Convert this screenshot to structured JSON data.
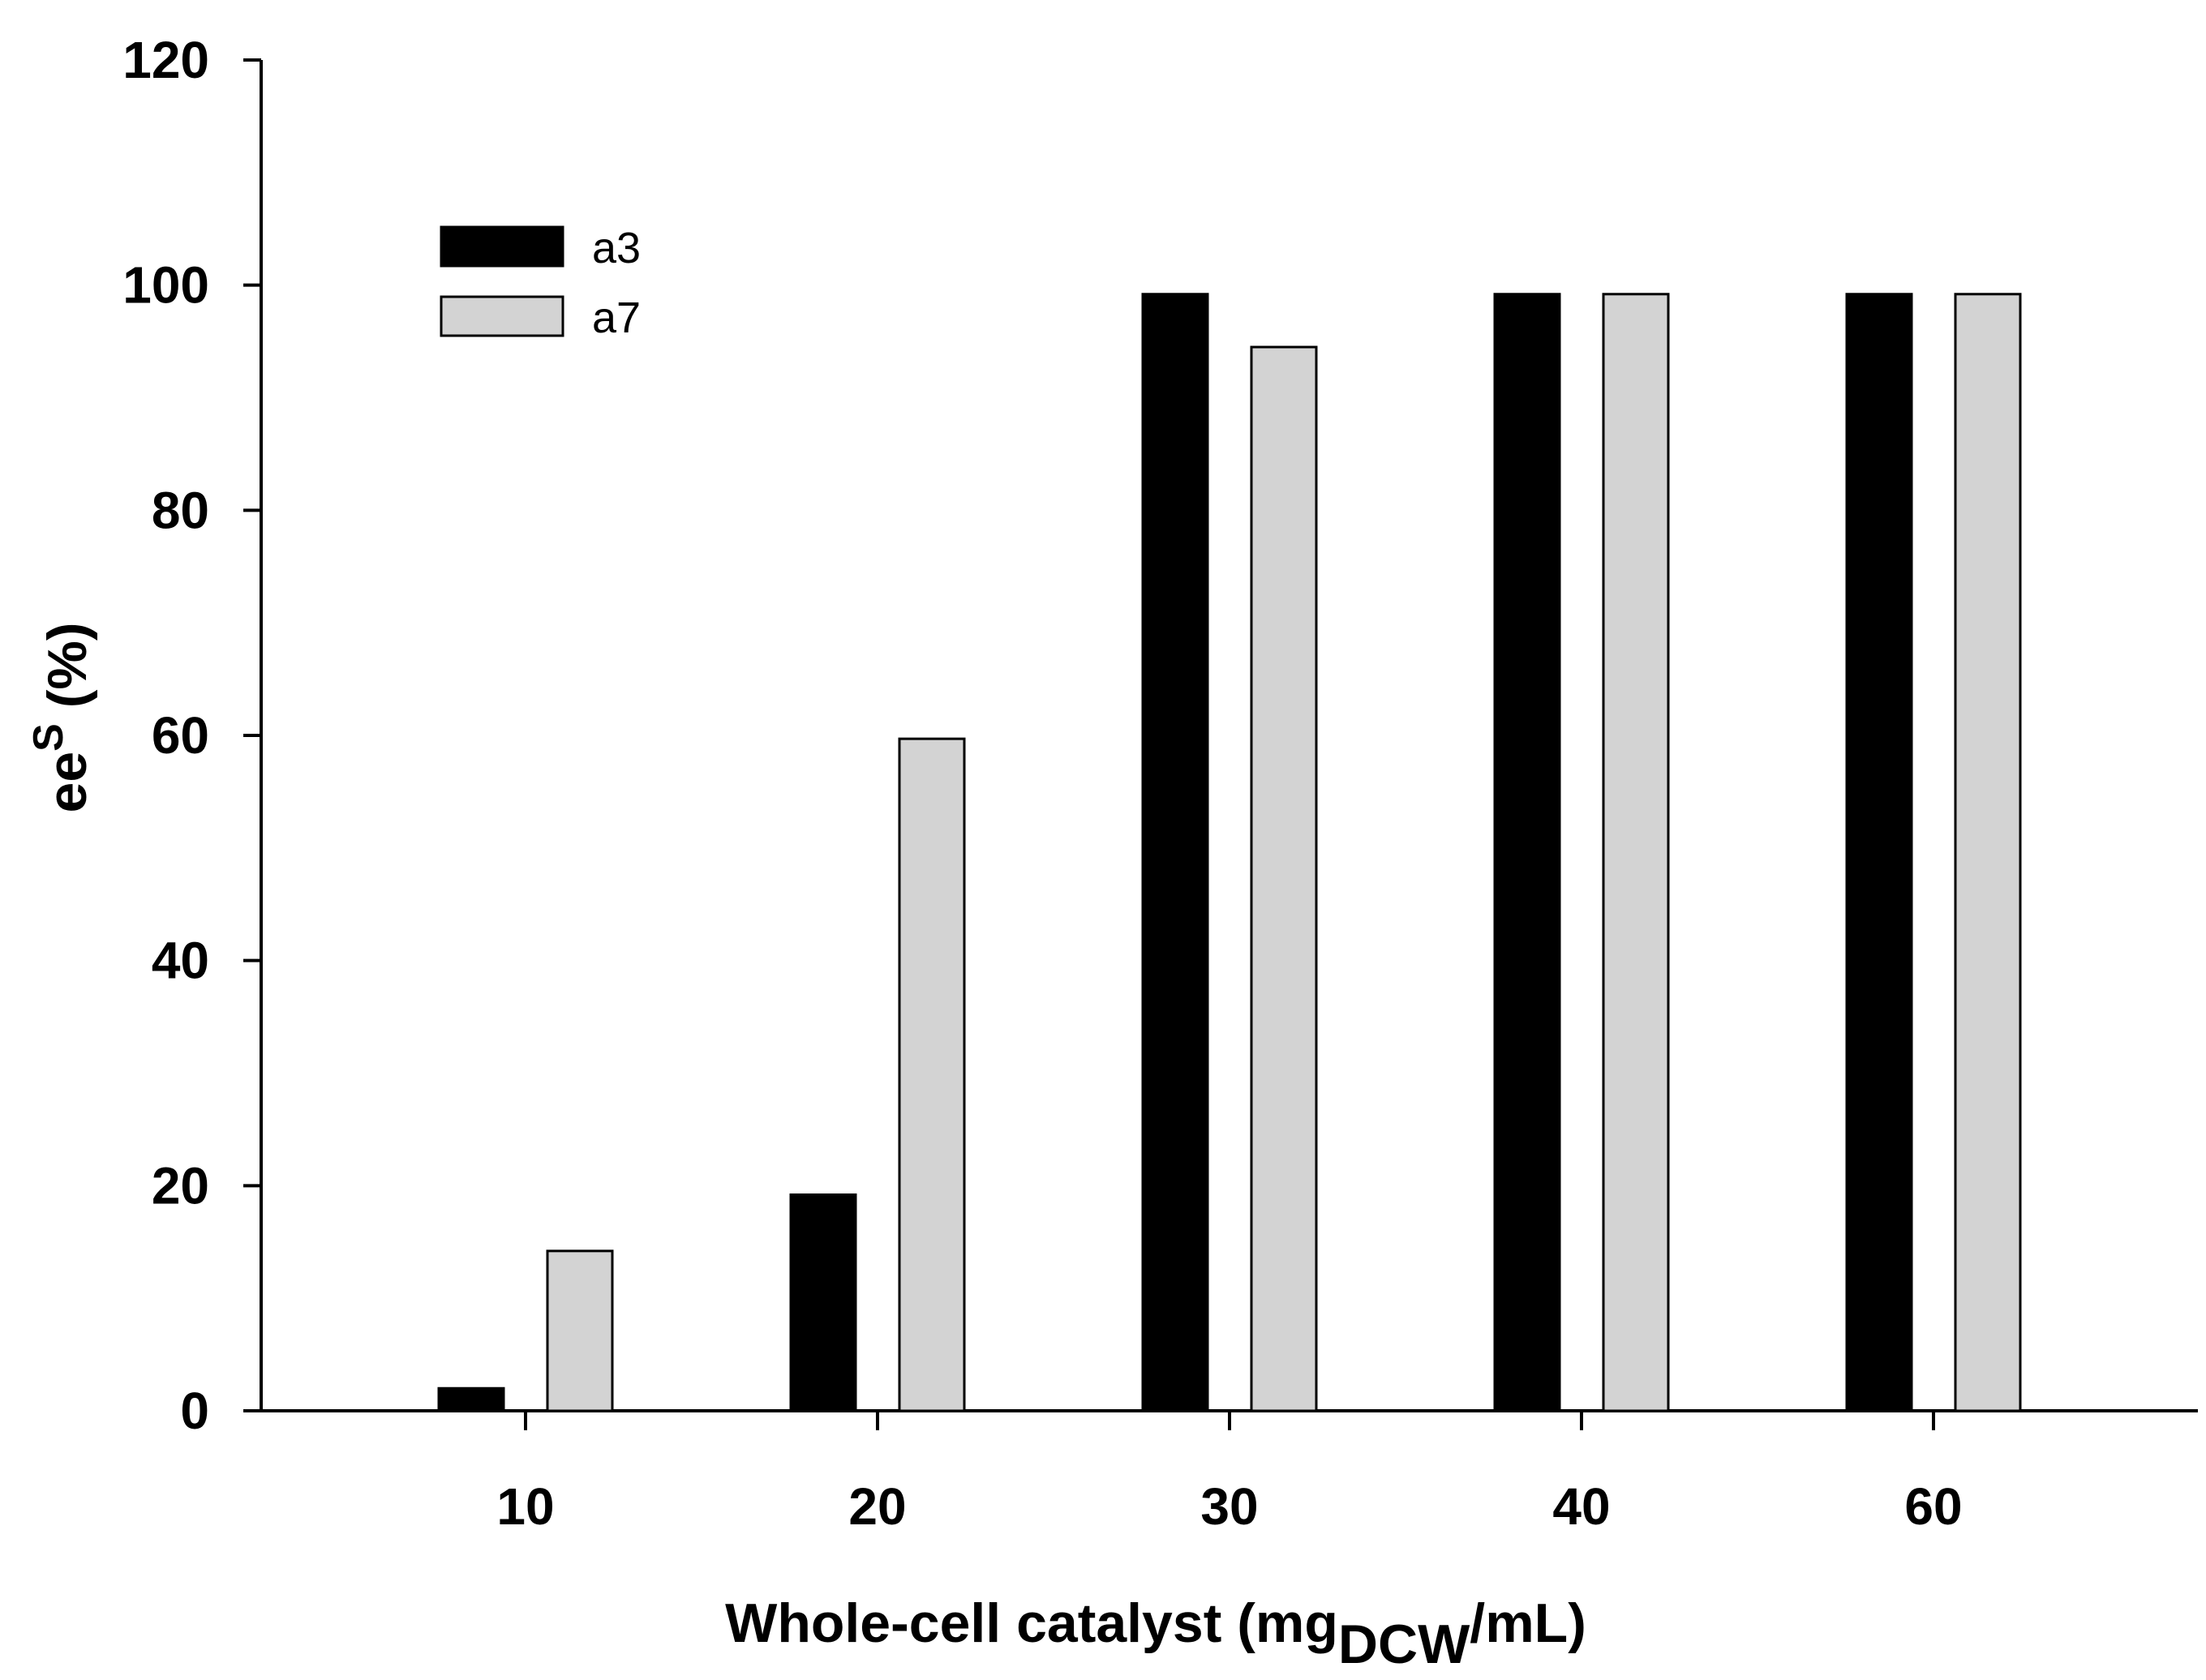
{
  "chart_data": {
    "type": "bar",
    "title": "",
    "categories": [
      "10",
      "20",
      "30",
      "40",
      "60"
    ],
    "series": [
      {
        "name": "a3",
        "color": "#000000",
        "values": [
          2,
          19.2,
          99.2,
          99.2,
          99.2
        ]
      },
      {
        "name": "a7",
        "color": "#d3d3d3",
        "values": [
          14.2,
          59.7,
          94.5,
          99.2,
          99.2
        ]
      }
    ],
    "xlabel": {
      "main": "Whole-cell catalyst (mg",
      "sub": "DCW",
      "tail": "/mL)"
    },
    "ylabel": {
      "main": "ee",
      "sup": "S",
      "tail": " (%)"
    },
    "ylim": [
      0,
      120
    ],
    "yticks": [
      "0",
      "20",
      "40",
      "60",
      "80",
      "100",
      "120"
    ],
    "grid": false,
    "legend_position": "top-left"
  }
}
